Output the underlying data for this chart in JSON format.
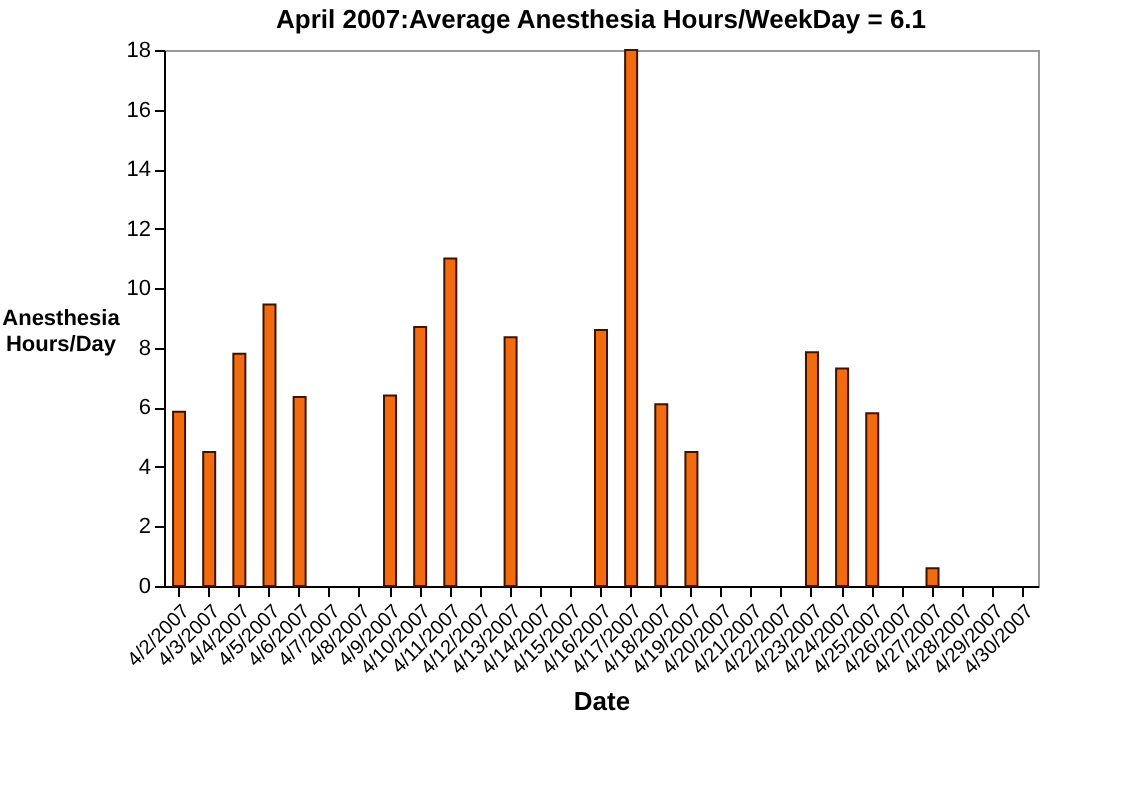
{
  "chart_data": {
    "type": "bar",
    "title": "April 2007:Average Anesthesia Hours/WeekDay = 6.1",
    "xlabel": "Date",
    "ylabel": "Anesthesia Hours/Day",
    "categories": [
      "4/2/2007",
      "4/3/2007",
      "4/4/2007",
      "4/5/2007",
      "4/6/2007",
      "4/7/2007",
      "4/8/2007",
      "4/9/2007",
      "4/10/2007",
      "4/11/2007",
      "4/12/2007",
      "4/13/2007",
      "4/14/2007",
      "4/15/2007",
      "4/16/2007",
      "4/17/2007",
      "4/18/2007",
      "4/19/2007",
      "4/20/2007",
      "4/21/2007",
      "4/22/2007",
      "4/23/2007",
      "4/24/2007",
      "4/25/2007",
      "4/26/2007",
      "4/27/2007",
      "4/28/2007",
      "4/29/2007",
      "4/30/2007"
    ],
    "values": [
      5.85,
      4.5,
      7.8,
      9.45,
      6.35,
      null,
      null,
      6.4,
      8.7,
      11.0,
      null,
      8.35,
      null,
      null,
      8.6,
      18,
      6.1,
      4.5,
      null,
      null,
      null,
      7.85,
      7.3,
      5.8,
      null,
      0.6,
      null,
      null,
      null
    ],
    "color": "#f26b0f",
    "ylim": [
      0,
      18
    ],
    "yticks": [
      0,
      2,
      4,
      6,
      8,
      10,
      12,
      14,
      16,
      18
    ],
    "grid": false
  }
}
